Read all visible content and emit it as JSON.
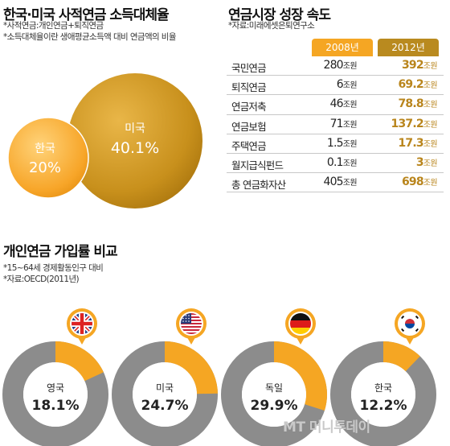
{
  "section1": {
    "title": "한국·미국 사적연금 소득대체율",
    "notes": [
      "*사적연금:개인연금+퇴직연금",
      "*소득대체율이란 생애평균소득액 대비 연금액의 비율"
    ]
  },
  "section2": {
    "title": "연금시장 성장 속도",
    "source": "*자료:미래에셋은퇴연구소"
  },
  "section3": {
    "title": "개인연금 가입률 비교",
    "notes": [
      "*15~64세 경제활동인구 대비",
      "*자료:OECD(2011년)"
    ]
  },
  "chart_data": [
    {
      "type": "bubble",
      "title": "한국·미국 사적연금 소득대체율",
      "categories": [
        "한국",
        "미국"
      ],
      "values": [
        20,
        40.1
      ],
      "value_labels": [
        "20%",
        "40.1%"
      ],
      "colors": [
        "#f5a623",
        "#c58a14"
      ]
    },
    {
      "type": "table",
      "title": "연금시장 성장 속도",
      "columns": [
        "2008년",
        "2012년"
      ],
      "unit": "조원",
      "rows": [
        {
          "name": "국민연금",
          "v2008": "280",
          "v2012": "392"
        },
        {
          "name": "퇴직연금",
          "v2008": "6",
          "v2012": "69.2"
        },
        {
          "name": "연금저축",
          "v2008": "46",
          "v2012": "78.8"
        },
        {
          "name": "연금보험",
          "v2008": "71",
          "v2012": "137.2"
        },
        {
          "name": "주택연금",
          "v2008": "1.5",
          "v2012": "17.3"
        },
        {
          "name": "월지급식펀드",
          "v2008": "0.1",
          "v2012": "3"
        },
        {
          "name": "총 연금화자산",
          "v2008": "405",
          "v2012": "698"
        }
      ]
    },
    {
      "type": "donut",
      "title": "개인연금 가입률 비교",
      "series": [
        {
          "name": "영국",
          "value": 18.1,
          "label": "18.1%",
          "flag": "uk-flag-icon"
        },
        {
          "name": "미국",
          "value": 24.7,
          "label": "24.7%",
          "flag": "us-flag-icon"
        },
        {
          "name": "독일",
          "value": 29.9,
          "label": "29.9%",
          "flag": "germany-flag-icon"
        },
        {
          "name": "한국",
          "value": 12.2,
          "label": "12.2%",
          "flag": "korea-flag-icon"
        }
      ],
      "colors": {
        "value": "#f5a623",
        "rest": "#8c8c8c"
      }
    }
  ],
  "watermark": "MT 머니투데이"
}
